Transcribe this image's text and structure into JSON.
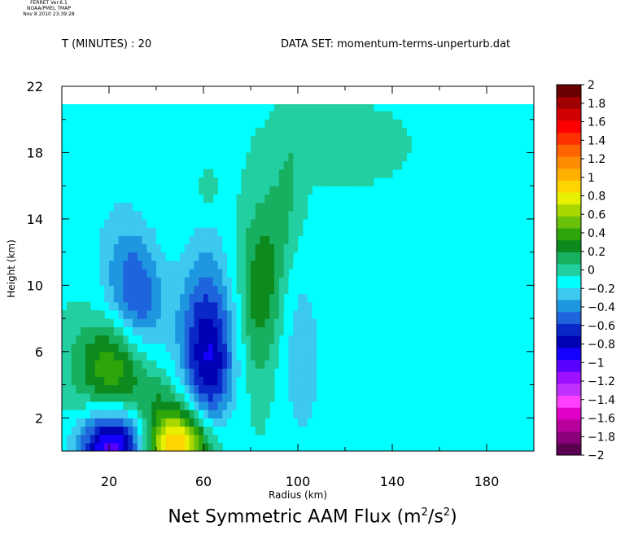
{
  "header": {
    "stamp": [
      "FERRET Ver.6.1",
      "NOAA/PMEL TMAP",
      "Nov 8 2010 23:39:28"
    ],
    "time_prefix": "T (MINUTES) : ",
    "time_value": "20",
    "dataset_prefix": "DATA SET: ",
    "dataset_name": "momentum-terms-unperturb.dat"
  },
  "chart_data": {
    "type": "heatmap",
    "title_main": "Net Symmetric AAM Flux (m",
    "title_sup1": "2",
    "title_mid": "/s",
    "title_sup2": "2",
    "title_end": ")",
    "xlabel": "Radius (km)",
    "ylabel": "Height (km)",
    "xlim": [
      0,
      200
    ],
    "ylim": [
      0,
      22
    ],
    "data_top": 21,
    "x_ticks": [
      20,
      60,
      100,
      140,
      180
    ],
    "y_ticks": [
      2,
      6,
      10,
      14,
      18,
      22
    ],
    "x_tick_labels": [
      "20",
      "60",
      "100",
      "140",
      "180"
    ],
    "y_tick_labels": [
      "2",
      "6",
      "10",
      "14",
      "18",
      "22"
    ],
    "colorbar": {
      "min": -2,
      "max": 2,
      "step": 0.2,
      "labels": [
        "2",
        "1.8",
        "1.6",
        "1.4",
        "1.2",
        "1",
        "0.8",
        "0.6",
        "0.4",
        "0.2",
        "0",
        "−0.2",
        "−0.4",
        "−0.6",
        "−0.8",
        "−1",
        "−1.2",
        "−1.4",
        "−1.6",
        "−1.8",
        "−2"
      ],
      "colors_bottom_to_top": [
        "#5a0050",
        "#8a007a",
        "#b8009e",
        "#e000c8",
        "#ff40ff",
        "#c030ff",
        "#9a10ff",
        "#5a00ff",
        "#1500ff",
        "#0000b4",
        "#0a28c8",
        "#1e64dc",
        "#1e96e0",
        "#3cc8ef",
        "#00ffff",
        "#22cfa0",
        "#17b060",
        "#0c8a1e",
        "#2ea60a",
        "#6ac10a",
        "#a8d800",
        "#e6f000",
        "#ffd400",
        "#ffb000",
        "#ff8c00",
        "#ff6400",
        "#ff3000",
        "#ff0000",
        "#d20000",
        "#a00000",
        "#6a0000"
      ]
    },
    "features": [
      {
        "name": "low-level negative",
        "x": 22,
        "y": 0.5,
        "value": -1.3
      },
      {
        "name": "low-level positive",
        "x": 49,
        "y": 0.5,
        "value": 1.5
      },
      {
        "name": "mid-level positive",
        "x": 22,
        "y": 5.5,
        "value": 0.7
      },
      {
        "name": "positive band",
        "x": 38,
        "y": 3,
        "value": 0.3
      },
      {
        "name": "negative maximum",
        "x": 64,
        "y": 5,
        "value": -1.0
      },
      {
        "name": "upper negative",
        "x": 33,
        "y": 8.5,
        "value": -0.7
      },
      {
        "name": "upper positive",
        "x": 84,
        "y": 9.8,
        "value": 0.5
      },
      {
        "name": "outer negative",
        "x": 102,
        "y": 5.5,
        "value": -0.3
      },
      {
        "name": "upper positive patch",
        "x": 115,
        "y": 18.5,
        "value": 0.2
      }
    ]
  }
}
